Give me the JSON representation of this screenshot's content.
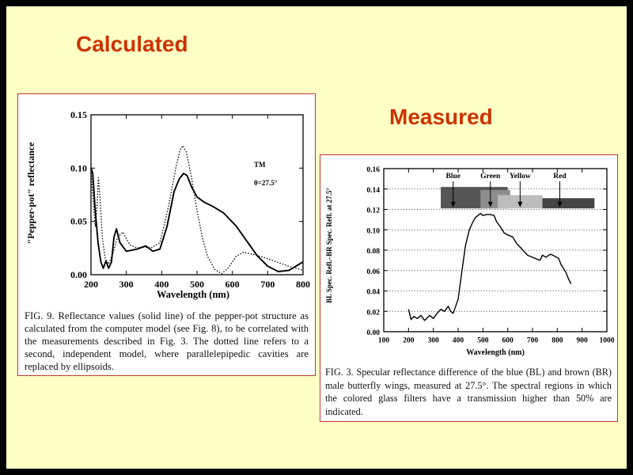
{
  "slide": {
    "title_left": "Calculated",
    "title_right": "Measured"
  },
  "chart_data": [
    {
      "type": "line",
      "xlabel": "Wavelength (nm)",
      "ylabel": "\"Pepper-pot\" reflectance",
      "xlim": [
        200,
        800
      ],
      "ylim": [
        0,
        0.15
      ],
      "xticks": [
        200,
        300,
        400,
        500,
        600,
        700,
        800
      ],
      "yticks": [
        "0.00",
        "0.05",
        "0.10",
        "0.15"
      ],
      "annotations": [
        "TM",
        "θ=27.5°"
      ],
      "series": [
        {
          "style": "solid",
          "points": [
            [
              200,
              0.1
            ],
            [
              205,
              0.095
            ],
            [
              212,
              0.06
            ],
            [
              220,
              0.03
            ],
            [
              228,
              0.012
            ],
            [
              235,
              0.006
            ],
            [
              242,
              0.013
            ],
            [
              250,
              0.006
            ],
            [
              258,
              0.012
            ],
            [
              265,
              0.035
            ],
            [
              272,
              0.043
            ],
            [
              282,
              0.03
            ],
            [
              300,
              0.022
            ],
            [
              330,
              0.024
            ],
            [
              355,
              0.027
            ],
            [
              375,
              0.022
            ],
            [
              395,
              0.024
            ],
            [
              415,
              0.045
            ],
            [
              435,
              0.078
            ],
            [
              450,
              0.09
            ],
            [
              462,
              0.095
            ],
            [
              472,
              0.093
            ],
            [
              485,
              0.082
            ],
            [
              500,
              0.073
            ],
            [
              520,
              0.068
            ],
            [
              545,
              0.064
            ],
            [
              575,
              0.058
            ],
            [
              610,
              0.046
            ],
            [
              640,
              0.032
            ],
            [
              670,
              0.018
            ],
            [
              700,
              0.008
            ],
            [
              730,
              0.003
            ],
            [
              760,
              0.004
            ],
            [
              790,
              0.01
            ],
            [
              800,
              0.012
            ]
          ]
        },
        {
          "style": "dotted",
          "points": [
            [
              200,
              0.098
            ],
            [
              206,
              0.07
            ],
            [
              212,
              0.045
            ],
            [
              217,
              0.065
            ],
            [
              221,
              0.091
            ],
            [
              226,
              0.07
            ],
            [
              232,
              0.035
            ],
            [
              240,
              0.015
            ],
            [
              250,
              0.01
            ],
            [
              262,
              0.02
            ],
            [
              275,
              0.035
            ],
            [
              290,
              0.04
            ],
            [
              310,
              0.028
            ],
            [
              330,
              0.025
            ],
            [
              350,
              0.026
            ],
            [
              370,
              0.025
            ],
            [
              395,
              0.03
            ],
            [
              420,
              0.065
            ],
            [
              440,
              0.1
            ],
            [
              452,
              0.117
            ],
            [
              460,
              0.121
            ],
            [
              470,
              0.115
            ],
            [
              485,
              0.09
            ],
            [
              500,
              0.06
            ],
            [
              515,
              0.035
            ],
            [
              530,
              0.017
            ],
            [
              550,
              0.005
            ],
            [
              570,
              0.001
            ],
            [
              590,
              0.007
            ],
            [
              610,
              0.017
            ],
            [
              630,
              0.021
            ],
            [
              660,
              0.019
            ],
            [
              700,
              0.015
            ],
            [
              750,
              0.009
            ],
            [
              800,
              0.004
            ]
          ]
        }
      ],
      "caption": "FIG. 9. Reflectance values (solid line) of the pepper-pot structure as calculated from the computer model (see Fig. 8), to be correlated with the measurements described in Fig. 3. The dotted line refers to a second, independent model, where parallelepipedic cavities are replaced by ellipsoids."
    },
    {
      "type": "line",
      "xlabel": "Wavelength (nm)",
      "ylabel": "BL Spec. Refl.–BR Spec. Refl. at 27.5°",
      "xlim": [
        100,
        1000
      ],
      "ylim": [
        0,
        0.16
      ],
      "xticks": [
        100,
        200,
        300,
        400,
        500,
        600,
        700,
        800,
        900,
        1000
      ],
      "yticks": [
        "0.00",
        "0.02",
        "0.04",
        "0.06",
        "0.08",
        "0.10",
        "0.12",
        "0.14",
        "0.16"
      ],
      "grid": "horizontal dotted",
      "filters": [
        {
          "label": "Blue",
          "x0": 330,
          "x1": 600,
          "y0": 0.121,
          "y1": 0.142,
          "color": "#555555",
          "arrow": 380
        },
        {
          "label": "Green",
          "x0": 490,
          "x1": 610,
          "y0": 0.121,
          "y1": 0.139,
          "color": "#8d8d8d",
          "arrow": 530
        },
        {
          "label": "Yellow",
          "x0": 560,
          "x1": 740,
          "y0": 0.121,
          "y1": 0.134,
          "color": "#bdbdbd",
          "arrow": 650
        },
        {
          "label": "Red",
          "x0": 740,
          "x1": 950,
          "y0": 0.121,
          "y1": 0.131,
          "color": "#444444",
          "arrow": 810
        }
      ],
      "series": [
        {
          "style": "solid",
          "points": [
            [
              200,
              0.022
            ],
            [
              210,
              0.012
            ],
            [
              222,
              0.015
            ],
            [
              235,
              0.013
            ],
            [
              250,
              0.016
            ],
            [
              265,
              0.011
            ],
            [
              285,
              0.016
            ],
            [
              300,
              0.013
            ],
            [
              315,
              0.018
            ],
            [
              330,
              0.022
            ],
            [
              345,
              0.02
            ],
            [
              360,
              0.025
            ],
            [
              370,
              0.02
            ],
            [
              380,
              0.018
            ],
            [
              390,
              0.025
            ],
            [
              400,
              0.032
            ],
            [
              410,
              0.05
            ],
            [
              420,
              0.068
            ],
            [
              430,
              0.085
            ],
            [
              445,
              0.1
            ],
            [
              460,
              0.108
            ],
            [
              470,
              0.112
            ],
            [
              480,
              0.114
            ],
            [
              490,
              0.116
            ],
            [
              500,
              0.114
            ],
            [
              515,
              0.115
            ],
            [
              530,
              0.115
            ],
            [
              545,
              0.114
            ],
            [
              555,
              0.108
            ],
            [
              570,
              0.103
            ],
            [
              585,
              0.097
            ],
            [
              600,
              0.095
            ],
            [
              620,
              0.093
            ],
            [
              635,
              0.087
            ],
            [
              650,
              0.083
            ],
            [
              665,
              0.079
            ],
            [
              680,
              0.075
            ],
            [
              700,
              0.073
            ],
            [
              720,
              0.071
            ],
            [
              730,
              0.07
            ],
            [
              740,
              0.075
            ],
            [
              755,
              0.073
            ],
            [
              765,
              0.075
            ],
            [
              775,
              0.076
            ],
            [
              790,
              0.074
            ],
            [
              805,
              0.072
            ],
            [
              815,
              0.066
            ],
            [
              825,
              0.062
            ],
            [
              835,
              0.058
            ],
            [
              845,
              0.052
            ],
            [
              855,
              0.047
            ]
          ]
        }
      ],
      "caption": "FIG. 3. Specular reflectance difference of the blue (BL) and brown (BR) male butterfly wings, measured at 27.5°. The spectral regions in which the colored glass filters have a transmission higher than 50% are indicated."
    }
  ]
}
